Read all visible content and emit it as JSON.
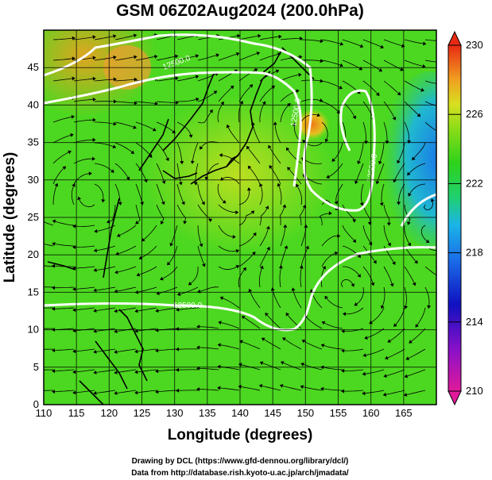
{
  "title": "GSM 06Z02Aug2024 (200.0hPa)",
  "map": {
    "xlabel": "Longitude (degrees)",
    "ylabel": "Latitude  (degrees)",
    "xlim": [
      110,
      170
    ],
    "ylim": [
      0,
      50
    ],
    "x_ticks": [
      "110",
      "115",
      "120",
      "125",
      "130",
      "135",
      "140",
      "145",
      "150",
      "155",
      "160",
      "165"
    ],
    "y_ticks": [
      "0",
      "5",
      "10",
      "15",
      "20",
      "25",
      "30",
      "35",
      "40",
      "45"
    ],
    "grid": true,
    "field": "temperature shading with wind streamlines",
    "contour_labels": [
      "12500.0",
      "12500.0",
      "12500.0",
      "12500.0"
    ]
  },
  "colorbar": {
    "min": 210,
    "max": 230,
    "labels": [
      "230",
      "226",
      "222",
      "218",
      "214",
      "210"
    ]
  },
  "credits": {
    "line1": "Drawing by DCL (https://www.gfd-dennou.org/library/dcl/)",
    "line2": "Data from http://database.rish.kyoto-u.ac.jp/arch/jmadata/"
  }
}
